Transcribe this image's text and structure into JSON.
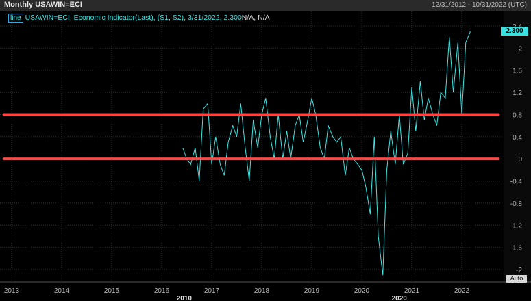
{
  "header": {
    "title": "Monthly USAWIN=ECI",
    "range": "12/31/2012 - 10/31/2022 (UTC)"
  },
  "legend": {
    "tag": "line",
    "text": "USAWIN=ECI, Economic Indicator(Last), (S1, S2), 3/31/2022, 2.300",
    "suffix": "N/A, N/A"
  },
  "last_value_badge": "2.300",
  "auto_button": "Auto",
  "colors": {
    "series": "#3ee6e6",
    "hline": "#ff4444",
    "grid": "#333333"
  },
  "chart_data": {
    "type": "line",
    "title": "Monthly USAWIN=ECI",
    "ylim": [
      -2.2,
      2.5
    ],
    "y_ticks": [
      "2.4",
      "2",
      "1.6",
      "1.2",
      "0.8",
      "0.4",
      "0",
      "-0.4",
      "-0.8",
      "-1.2",
      "-1.6",
      "-2"
    ],
    "y_tick_values": [
      2.4,
      2.0,
      1.6,
      1.2,
      0.8,
      0.4,
      0.0,
      -0.4,
      -0.8,
      -1.2,
      -1.6,
      -2.0
    ],
    "x_ticks": [
      "2013",
      "2014",
      "2015",
      "2016",
      "2017",
      "2018",
      "2019",
      "2020",
      "2021",
      "2022"
    ],
    "x_tick_years": [
      2013,
      2014,
      2015,
      2016,
      2017,
      2018,
      2019,
      2020,
      2021,
      2022
    ],
    "x_range": [
      2012.92,
      2023.0
    ],
    "secondary_labels": [
      {
        "text": "2010",
        "year": 2016.45
      },
      {
        "text": "2020",
        "year": 2020.75
      }
    ],
    "horizontal_lines": [
      0.8,
      0.0
    ],
    "series": [
      {
        "name": "USAWIN=ECI",
        "x": [
          2016.42,
          2016.5,
          2016.58,
          2016.67,
          2016.75,
          2016.83,
          2016.92,
          2017.0,
          2017.08,
          2017.17,
          2017.25,
          2017.33,
          2017.42,
          2017.5,
          2017.58,
          2017.67,
          2017.75,
          2017.83,
          2017.92,
          2018.0,
          2018.08,
          2018.17,
          2018.25,
          2018.33,
          2018.42,
          2018.5,
          2018.58,
          2018.67,
          2018.75,
          2018.83,
          2018.92,
          2019.0,
          2019.08,
          2019.17,
          2019.25,
          2019.33,
          2019.42,
          2019.5,
          2019.58,
          2019.67,
          2019.75,
          2019.83,
          2019.92,
          2020.0,
          2020.08,
          2020.17,
          2020.25,
          2020.33,
          2020.42,
          2020.5,
          2020.58,
          2020.67,
          2020.75,
          2020.83,
          2020.92,
          2021.0,
          2021.08,
          2021.17,
          2021.25,
          2021.33,
          2021.42,
          2021.5,
          2021.58,
          2021.67,
          2021.75,
          2021.83,
          2021.92,
          2022.0,
          2022.08,
          2022.17
        ],
        "values": [
          0.2,
          0.0,
          -0.1,
          0.2,
          -0.4,
          0.9,
          1.0,
          -0.1,
          0.4,
          -0.1,
          -0.3,
          0.3,
          0.6,
          0.4,
          1.0,
          0.2,
          -0.4,
          0.7,
          0.2,
          0.8,
          1.1,
          0.4,
          0.0,
          0.8,
          0.0,
          0.5,
          0.0,
          0.6,
          0.8,
          0.3,
          0.7,
          1.1,
          0.8,
          0.2,
          0.0,
          0.6,
          0.4,
          0.3,
          0.4,
          -0.3,
          0.2,
          0.0,
          -0.1,
          -0.2,
          -0.5,
          -1.0,
          0.4,
          -1.4,
          -2.1,
          -0.2,
          0.5,
          -0.1,
          0.8,
          -0.1,
          0.1,
          1.3,
          0.5,
          1.4,
          0.7,
          1.1,
          0.8,
          0.6,
          1.2,
          1.1,
          2.2,
          1.2,
          2.1,
          0.8,
          2.1,
          2.3
        ]
      }
    ]
  }
}
